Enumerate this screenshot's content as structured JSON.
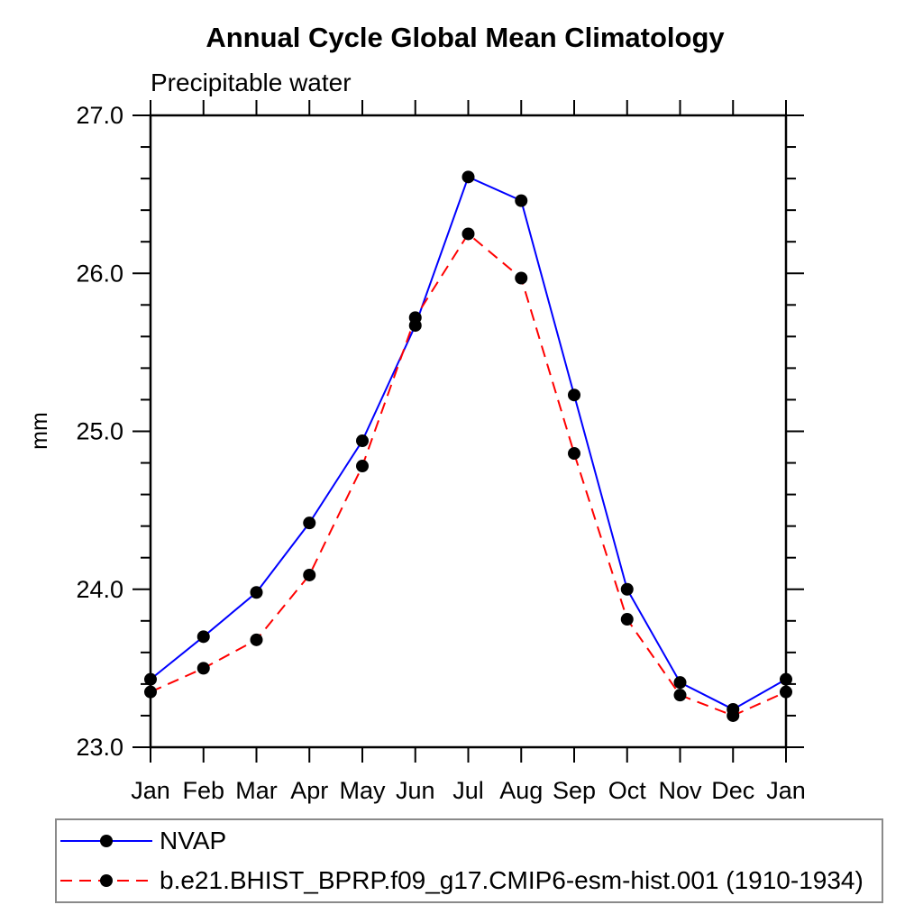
{
  "chart_data": {
    "type": "line",
    "title": "Annual Cycle Global Mean Climatology",
    "subtitle": "Precipitable water",
    "ylabel": "mm",
    "xlabel": "",
    "x_labels": [
      "Jan",
      "Feb",
      "Mar",
      "Apr",
      "May",
      "Jun",
      "Jul",
      "Aug",
      "Sep",
      "Oct",
      "Nov",
      "Dec",
      "Jan"
    ],
    "ylim": [
      23.0,
      27.0
    ],
    "ytick_major_step": 1.0,
    "ytick_minor_step": 0.2,
    "ytick_label_decimals": 1,
    "grid": false,
    "frame_color": "#000000",
    "legend_position": "bottom-left-box",
    "series": [
      {
        "name": "NVAP",
        "color": "#0000ff",
        "line_style": "solid",
        "marker": "circle",
        "marker_color": "#000000",
        "values": [
          23.43,
          23.7,
          23.98,
          24.42,
          24.94,
          25.67,
          26.61,
          26.46,
          25.23,
          24.0,
          23.41,
          23.24,
          23.43
        ]
      },
      {
        "name": "b.e21.BHIST_BPRP.f09_g17.CMIP6-esm-hist.001 (1910-1934)",
        "color": "#ff0000",
        "line_style": "dashed",
        "marker": "circle",
        "marker_color": "#000000",
        "values": [
          23.35,
          23.5,
          23.68,
          24.09,
          24.78,
          25.72,
          26.25,
          25.97,
          24.86,
          23.81,
          23.33,
          23.2,
          23.35
        ]
      }
    ]
  }
}
